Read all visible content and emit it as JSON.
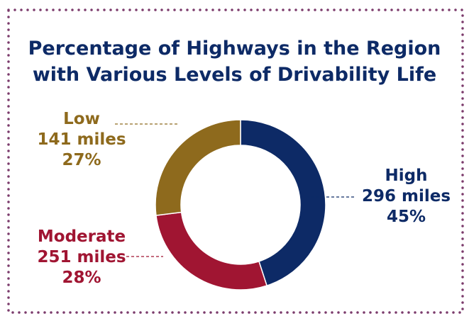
{
  "chart_data": {
    "type": "pie",
    "title_lines": [
      "Percentage of Highways in the Region",
      "with Various Levels of Drivability Life"
    ],
    "slices": [
      {
        "name": "High",
        "miles_label": "296 miles",
        "percent_label": "45%",
        "value": 45,
        "color": "#0d2a66"
      },
      {
        "name": "Moderate",
        "miles_label": "251 miles",
        "percent_label": "28%",
        "value": 28,
        "color": "#a01532"
      },
      {
        "name": "Low",
        "miles_label": "141 miles",
        "percent_label": "27%",
        "value": 27,
        "color": "#8e6a1d"
      }
    ],
    "donut": true,
    "border_color": "#7b3a6b"
  }
}
